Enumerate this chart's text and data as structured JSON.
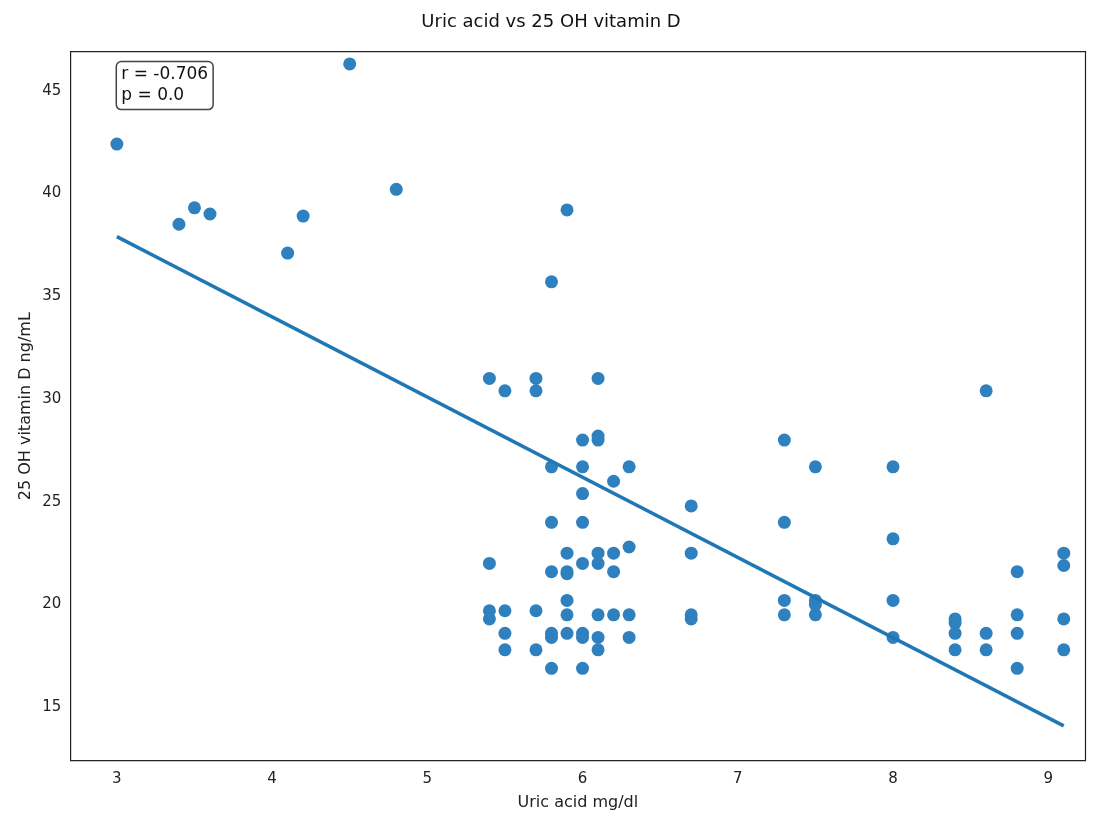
{
  "chart_data": {
    "type": "scatter",
    "title": "Uric acid vs 25 OH vitamin D",
    "xlabel": "Uric acid mg/dl",
    "ylabel": "25 OH vitamin D ng/mL",
    "annotations": [
      "r = -0.706",
      "p = 0.0"
    ],
    "xlim": [
      2.7,
      9.24
    ],
    "xticks": [
      3,
      4,
      5,
      6,
      7,
      8,
      9
    ],
    "ylim": [
      12.4,
      46.9
    ],
    "yticks": [
      15,
      20,
      25,
      30,
      35,
      40,
      45
    ],
    "grid": false,
    "legend": false,
    "series": [
      {
        "marker": "circle",
        "color": "#2f80be",
        "x": [
          3.0,
          3.4,
          3.5,
          3.6,
          4.1,
          4.2,
          4.5,
          4.8,
          5.4,
          5.4,
          5.4,
          5.4,
          5.5,
          5.5,
          5.5,
          5.5,
          5.7,
          5.7,
          5.7,
          5.7,
          5.8,
          5.8,
          5.8,
          5.8,
          5.8,
          5.8,
          5.8,
          5.9,
          5.9,
          5.9,
          5.9,
          5.9,
          5.9,
          5.9,
          6.0,
          6.0,
          6.0,
          6.0,
          6.0,
          6.0,
          6.0,
          6.0,
          6.1,
          6.1,
          6.1,
          6.1,
          6.1,
          6.1,
          6.1,
          6.1,
          6.2,
          6.2,
          6.2,
          6.2,
          6.3,
          6.3,
          6.3,
          6.3,
          6.7,
          6.7,
          6.7,
          6.7,
          7.3,
          7.3,
          7.3,
          7.3,
          7.5,
          7.5,
          7.5,
          7.5,
          8.0,
          8.0,
          8.0,
          8.0,
          8.4,
          8.4,
          8.4,
          8.4,
          8.6,
          8.6,
          8.6,
          8.8,
          8.8,
          8.8,
          8.8,
          9.1,
          9.1,
          9.1,
          9.1
        ],
        "values": [
          42.4,
          38.5,
          39.3,
          39.0,
          37.1,
          38.9,
          46.3,
          40.2,
          31.0,
          22.0,
          19.7,
          19.3,
          30.4,
          19.7,
          18.6,
          17.8,
          31.0,
          30.4,
          19.7,
          17.8,
          35.7,
          26.7,
          24.0,
          21.6,
          18.6,
          18.4,
          16.9,
          39.2,
          22.5,
          21.6,
          21.5,
          20.2,
          19.5,
          18.6,
          28.0,
          26.7,
          25.4,
          24.0,
          22.0,
          18.6,
          18.4,
          16.9,
          31.0,
          28.2,
          28.0,
          22.5,
          22.0,
          19.5,
          18.4,
          17.8,
          26.0,
          22.5,
          21.6,
          19.5,
          26.7,
          22.8,
          19.5,
          18.4,
          24.8,
          22.5,
          19.5,
          19.3,
          28.0,
          24.0,
          20.2,
          19.5,
          26.7,
          20.2,
          20.0,
          19.5,
          26.7,
          23.2,
          20.2,
          18.4,
          19.3,
          19.1,
          18.6,
          17.8,
          30.4,
          18.6,
          17.8,
          21.6,
          19.5,
          18.6,
          16.9,
          22.5,
          21.9,
          19.3,
          17.8
        ]
      },
      {
        "type": "line",
        "color": "#1f77b4",
        "line_style": "solid",
        "x": [
          3.0,
          9.1
        ],
        "values": [
          37.9,
          14.1
        ]
      }
    ]
  }
}
